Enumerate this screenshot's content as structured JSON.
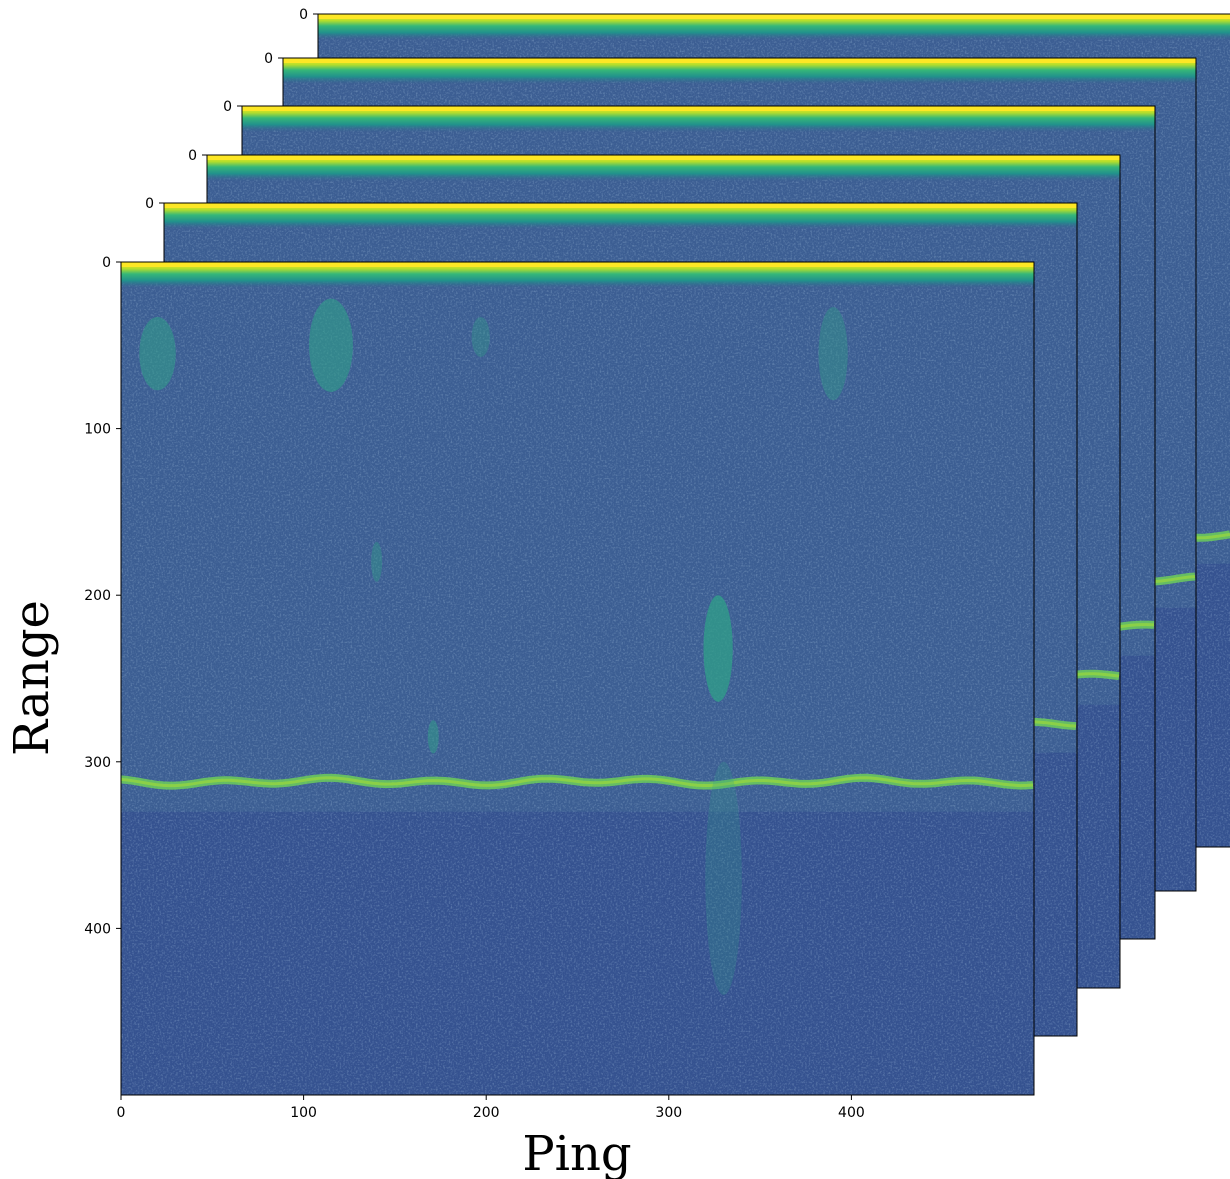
{
  "chart_data": {
    "type": "image-stack",
    "xlabel": "Ping",
    "ylabel": "Range",
    "xlim": [
      0,
      500
    ],
    "ylim": [
      500,
      0
    ],
    "xticks": [
      0,
      100,
      200,
      300,
      400
    ],
    "yticks": [
      0,
      100,
      200,
      300,
      400
    ],
    "layers": [
      {
        "yticks": [
          0
        ]
      },
      {
        "yticks": [
          0
        ]
      },
      {
        "yticks": [
          0
        ]
      },
      {
        "yticks": [
          0
        ]
      },
      {
        "yticks": [
          0
        ]
      }
    ]
  }
}
